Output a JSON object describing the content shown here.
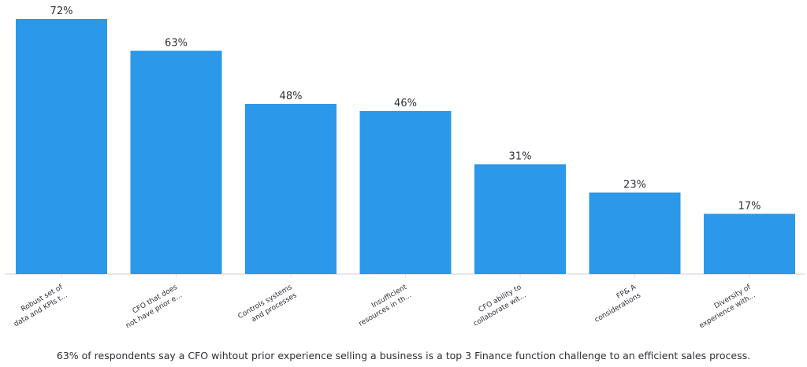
{
  "chart_data": {
    "type": "bar",
    "categories": [
      [
        "Robust set of",
        "data and KPIs t..."
      ],
      [
        "CFO that does",
        "not have prior e..."
      ],
      [
        "Controls systems",
        "and processes"
      ],
      [
        "Insufficient",
        "resources in th..."
      ],
      [
        "CFO ability to",
        "collaborate wit..."
      ],
      [
        "FP& A",
        "considerations"
      ],
      [
        "Diversity of",
        "experience with..."
      ]
    ],
    "values": [
      72,
      63,
      48,
      46,
      31,
      23,
      17
    ],
    "value_labels": [
      "72%",
      "63%",
      "48%",
      "46%",
      "31%",
      "23%",
      "17%"
    ],
    "ylim": [
      0,
      72
    ],
    "grid": false,
    "bar_color": "#2c98e9",
    "axis_color": "#e1e1e6",
    "label_color": "#2e2e38"
  },
  "caption": "63% of respondents say a CFO wihtout prior experience selling a business is a top 3 Finance function challenge to an efficient sales process."
}
